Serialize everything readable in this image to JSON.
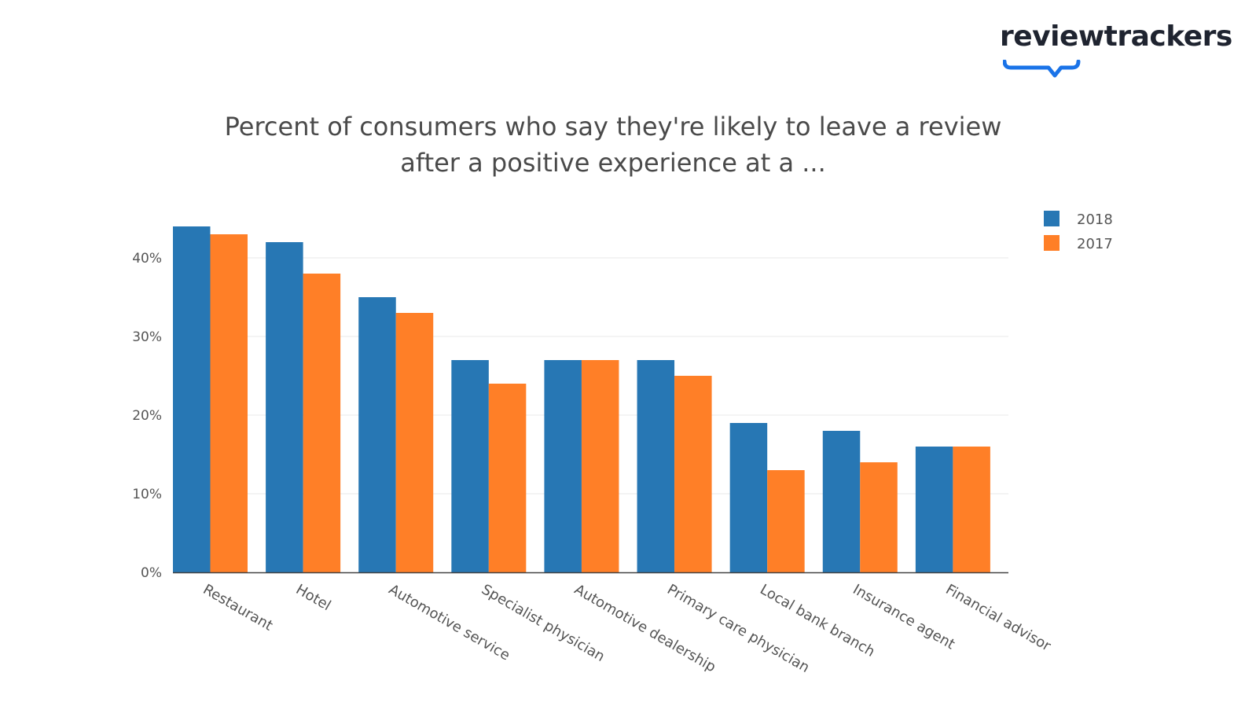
{
  "brand": {
    "name": "reviewtrackers",
    "accent_color": "#1a73e8"
  },
  "chart_data": {
    "type": "bar",
    "title_lines": [
      "Percent of consumers who say they're likely to leave a review",
      "after a positive experience at a ..."
    ],
    "xlabel": "",
    "ylabel": "",
    "categories": [
      "Restaurant",
      "Hotel",
      "Automotive service",
      "Specialist physician",
      "Automotive dealership",
      "Primary care physician",
      "Local bank branch",
      "Insurance agent",
      "Financial advisor"
    ],
    "series": [
      {
        "name": "2018",
        "color": "#2777b4",
        "values": [
          44,
          42,
          35,
          27,
          27,
          27,
          19,
          18,
          16
        ]
      },
      {
        "name": "2017",
        "color": "#ff7f27",
        "values": [
          43,
          38,
          33,
          24,
          27,
          25,
          13,
          14,
          16
        ]
      }
    ],
    "ylim": [
      0,
      46
    ],
    "yticks": [
      0,
      10,
      20,
      30,
      40
    ],
    "ytick_labels": [
      "0%",
      "10%",
      "20%",
      "30%",
      "40%"
    ],
    "grid": true,
    "legend_position": "top-right"
  }
}
